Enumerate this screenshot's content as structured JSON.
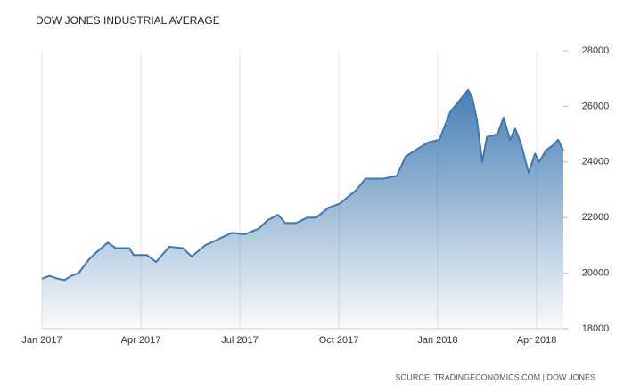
{
  "chart_data": {
    "type": "area",
    "title": "DOW JONES INDUSTRIAL AVERAGE",
    "source": "SOURCE: TRADINGECONOMICS.COM | DOW JONES",
    "x": [
      0,
      0.22,
      0.49,
      0.68,
      0.89,
      1.11,
      1.43,
      1.7,
      2.0,
      2.24,
      2.65,
      2.78,
      3.19,
      3.46,
      3.86,
      4.27,
      4.54,
      4.95,
      5.49,
      5.76,
      6.16,
      6.57,
      6.84,
      7.16,
      7.38,
      7.7,
      8.05,
      8.32,
      8.68,
      9.03,
      9.54,
      9.81,
      10.35,
      10.76,
      11.03,
      11.43,
      11.7,
      12.05,
      12.38,
      12.65,
      12.92,
      13.05,
      13.19,
      13.35,
      13.49,
      13.81,
      14.0,
      14.19,
      14.35,
      14.54,
      14.76,
      14.95,
      15.08,
      15.27,
      15.49,
      15.65,
      15.81
    ],
    "series": [
      {
        "name": "Dow Jones",
        "color": "#3d78b0",
        "values": [
          19800,
          19900,
          19800,
          19750,
          19900,
          20000,
          20500,
          20800,
          21100,
          20900,
          20900,
          20650,
          20650,
          20400,
          20950,
          20900,
          20600,
          21000,
          21300,
          21450,
          21400,
          21600,
          21900,
          22100,
          21800,
          21800,
          22000,
          22000,
          22350,
          22500,
          23000,
          23400,
          23400,
          23500,
          24200,
          24500,
          24700,
          24800,
          25800,
          26200,
          26600,
          26300,
          25500,
          24000,
          24900,
          25000,
          25600,
          24800,
          25200,
          24600,
          23600,
          24300,
          24000,
          24400,
          24600,
          24800,
          24400
        ]
      }
    ],
    "xlim": [
      0,
      15.81
    ],
    "xticks": [
      {
        "value": 0,
        "label": "Jan 2017"
      },
      {
        "value": 3,
        "label": "Apr 2017"
      },
      {
        "value": 6,
        "label": "Jul 2017"
      },
      {
        "value": 9,
        "label": "Oct 2017"
      },
      {
        "value": 12,
        "label": "Jan 2018"
      },
      {
        "value": 15,
        "label": "Apr 2018"
      }
    ],
    "ylim": [
      18000,
      28000
    ],
    "yticks": [
      18000,
      20000,
      22000,
      24000,
      26000,
      28000
    ],
    "grid": "x"
  }
}
